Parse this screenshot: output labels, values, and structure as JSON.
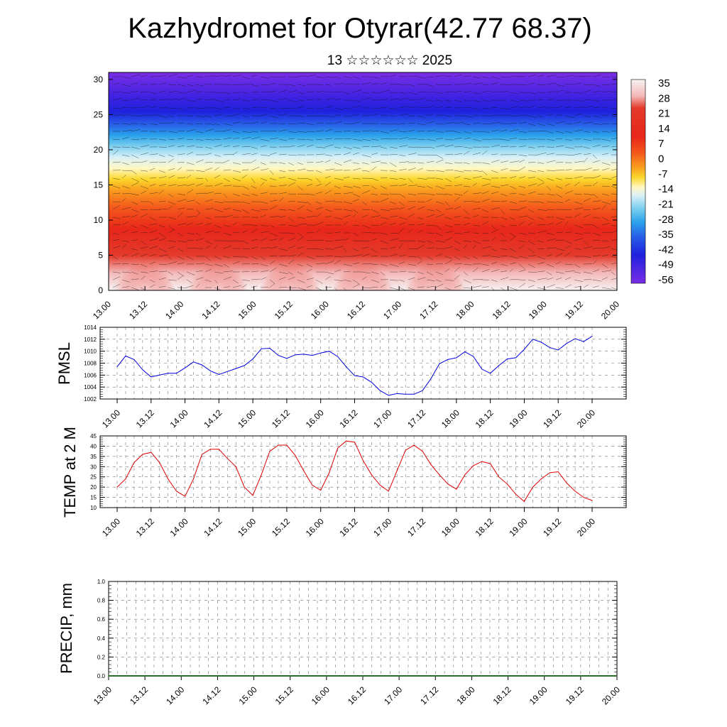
{
  "header": {
    "title": "Kazhydromet for Otyrar(42.77 68.37)",
    "subtitle": "13 ☆☆☆☆☆☆ 2025"
  },
  "colors": {
    "pmsl_line": "#0000dd",
    "temp_line": "#dd0000",
    "grid": "#777777",
    "wind_barb": "#111111"
  },
  "chart_data": [
    {
      "id": "cross_section",
      "type": "heatmap",
      "title": "",
      "xlabel": "",
      "ylabel": "",
      "x_ticks": [
        "13.00",
        "13.12",
        "14.00",
        "14.12",
        "15.00",
        "15.12",
        "16.00",
        "16.12",
        "17.00",
        "17.12",
        "18.00",
        "18.12",
        "19.00",
        "19.12",
        "20.00"
      ],
      "y_ticks": [
        "0",
        "5",
        "10",
        "15",
        "20",
        "25",
        "30"
      ],
      "ylim": [
        0,
        31
      ],
      "colorbar": {
        "labels": [
          "35",
          "28",
          "21",
          "14",
          "7",
          "0",
          "-7",
          "-14",
          "-21",
          "-28",
          "-35",
          "-42",
          "-49",
          "-56"
        ],
        "colors": [
          "#f7f2f2",
          "#f3b9b9",
          "#e33a2a",
          "#e8261a",
          "#f4581c",
          "#f99d1e",
          "#fcd72c",
          "#fff7c4",
          "#d9f0f7",
          "#7fd0ef",
          "#2aa3ea",
          "#2860e8",
          "#1f21dd",
          "#7a2ee6"
        ]
      },
      "overlay": "wind vectors",
      "warm_pulses_time": [
        "13.12",
        "14.12",
        "15.12",
        "16.12",
        "17.12"
      ]
    },
    {
      "id": "pmsl",
      "type": "line",
      "title": "",
      "ylabel": "PMSL",
      "xlabel": "",
      "ylim": [
        1002,
        1014
      ],
      "y_ticks": [
        "1002",
        "1004",
        "1006",
        "1008",
        "1010",
        "1012",
        "1014"
      ],
      "x_ticks": [
        "13.00",
        "13.12",
        "14.00",
        "14.12",
        "15.00",
        "15.12",
        "16.00",
        "16.12",
        "17.00",
        "17.12",
        "18.00",
        "18.12",
        "19.00",
        "19.12",
        "20.00"
      ],
      "x": [
        0,
        3,
        6,
        9,
        12,
        15,
        18,
        21,
        24,
        27,
        30,
        33,
        36,
        39,
        42,
        45,
        48,
        51,
        54,
        57,
        60,
        63,
        66,
        69,
        72,
        75,
        78,
        81,
        84,
        87,
        90,
        93,
        96,
        99,
        102,
        105,
        108,
        111,
        114,
        117,
        120,
        123,
        126,
        129,
        132,
        135,
        138,
        141,
        144,
        147,
        150,
        153,
        156,
        159,
        162,
        165,
        168
      ],
      "series": [
        {
          "values": [
            1007.4,
            1009.2,
            1008.6,
            1006.9,
            1005.7,
            1006.0,
            1006.3,
            1006.3,
            1007.2,
            1008.2,
            1007.7,
            1006.7,
            1006.1,
            1006.6,
            1007.1,
            1007.6,
            1008.7,
            1010.4,
            1010.5,
            1009.3,
            1008.8,
            1009.4,
            1009.5,
            1009.3,
            1009.7,
            1010.0,
            1009.1,
            1007.4,
            1005.9,
            1005.7,
            1004.8,
            1003.4,
            1002.6,
            1002.9,
            1002.8,
            1002.8,
            1003.4,
            1005.4,
            1007.9,
            1008.6,
            1008.9,
            1009.9,
            1009.1,
            1007.0,
            1006.3,
            1007.6,
            1008.7,
            1008.9,
            1010.3,
            1012.0,
            1011.5,
            1010.6,
            1010.2,
            1011.3,
            1012.1,
            1011.6,
            1012.5
          ]
        }
      ]
    },
    {
      "id": "temp",
      "type": "line",
      "title": "",
      "ylabel": "TEMP at 2 M",
      "xlabel": "",
      "ylim": [
        10,
        45
      ],
      "y_ticks": [
        "10",
        "15",
        "20",
        "25",
        "30",
        "35",
        "40",
        "45"
      ],
      "x_ticks": [
        "13.00",
        "13.12",
        "14.00",
        "14.12",
        "15.00",
        "15.12",
        "16.00",
        "16.12",
        "17.00",
        "17.12",
        "18.00",
        "18.12",
        "19.00",
        "19.12",
        "20.00"
      ],
      "x": [
        0,
        3,
        6,
        9,
        12,
        15,
        18,
        21,
        24,
        27,
        30,
        33,
        36,
        39,
        42,
        45,
        48,
        51,
        54,
        57,
        60,
        63,
        66,
        69,
        72,
        75,
        78,
        81,
        84,
        87,
        90,
        93,
        96,
        99,
        102,
        105,
        108,
        111,
        114,
        117,
        120,
        123,
        126,
        129,
        132,
        135,
        138,
        141,
        144,
        147,
        150,
        153,
        156,
        159,
        162,
        165,
        168
      ],
      "series": [
        {
          "values": [
            20,
            24,
            32,
            36,
            37,
            32,
            24,
            18,
            15.5,
            24,
            36,
            38.5,
            38.5,
            34,
            30,
            20,
            16,
            26,
            37.5,
            40.5,
            40.5,
            35.5,
            28,
            21,
            18.5,
            27,
            39,
            42.5,
            42,
            33,
            26,
            21,
            18,
            28,
            38,
            40.5,
            37.5,
            31,
            26,
            21.5,
            19,
            26,
            30.5,
            32.5,
            31.5,
            25,
            21.5,
            16.5,
            13,
            20,
            24,
            27,
            27.5,
            22,
            18,
            15,
            13.5
          ]
        }
      ]
    },
    {
      "id": "precip",
      "type": "line",
      "title": "",
      "ylabel": "PRECIP, mm",
      "xlabel": "",
      "ylim": [
        0.0,
        1.0
      ],
      "y_ticks": [
        "0.0",
        "0.2",
        "0.4",
        "0.6",
        "0.8",
        "1.0"
      ],
      "x_ticks": [
        "13.00",
        "13.12",
        "14.00",
        "14.12",
        "15.00",
        "15.12",
        "16.00",
        "16.12",
        "17.00",
        "17.12",
        "18.00",
        "18.12",
        "19.00",
        "19.12",
        "20.00"
      ],
      "series": [
        {
          "values": [
            0,
            0,
            0,
            0,
            0,
            0,
            0,
            0,
            0,
            0,
            0,
            0,
            0,
            0,
            0
          ]
        }
      ]
    }
  ]
}
